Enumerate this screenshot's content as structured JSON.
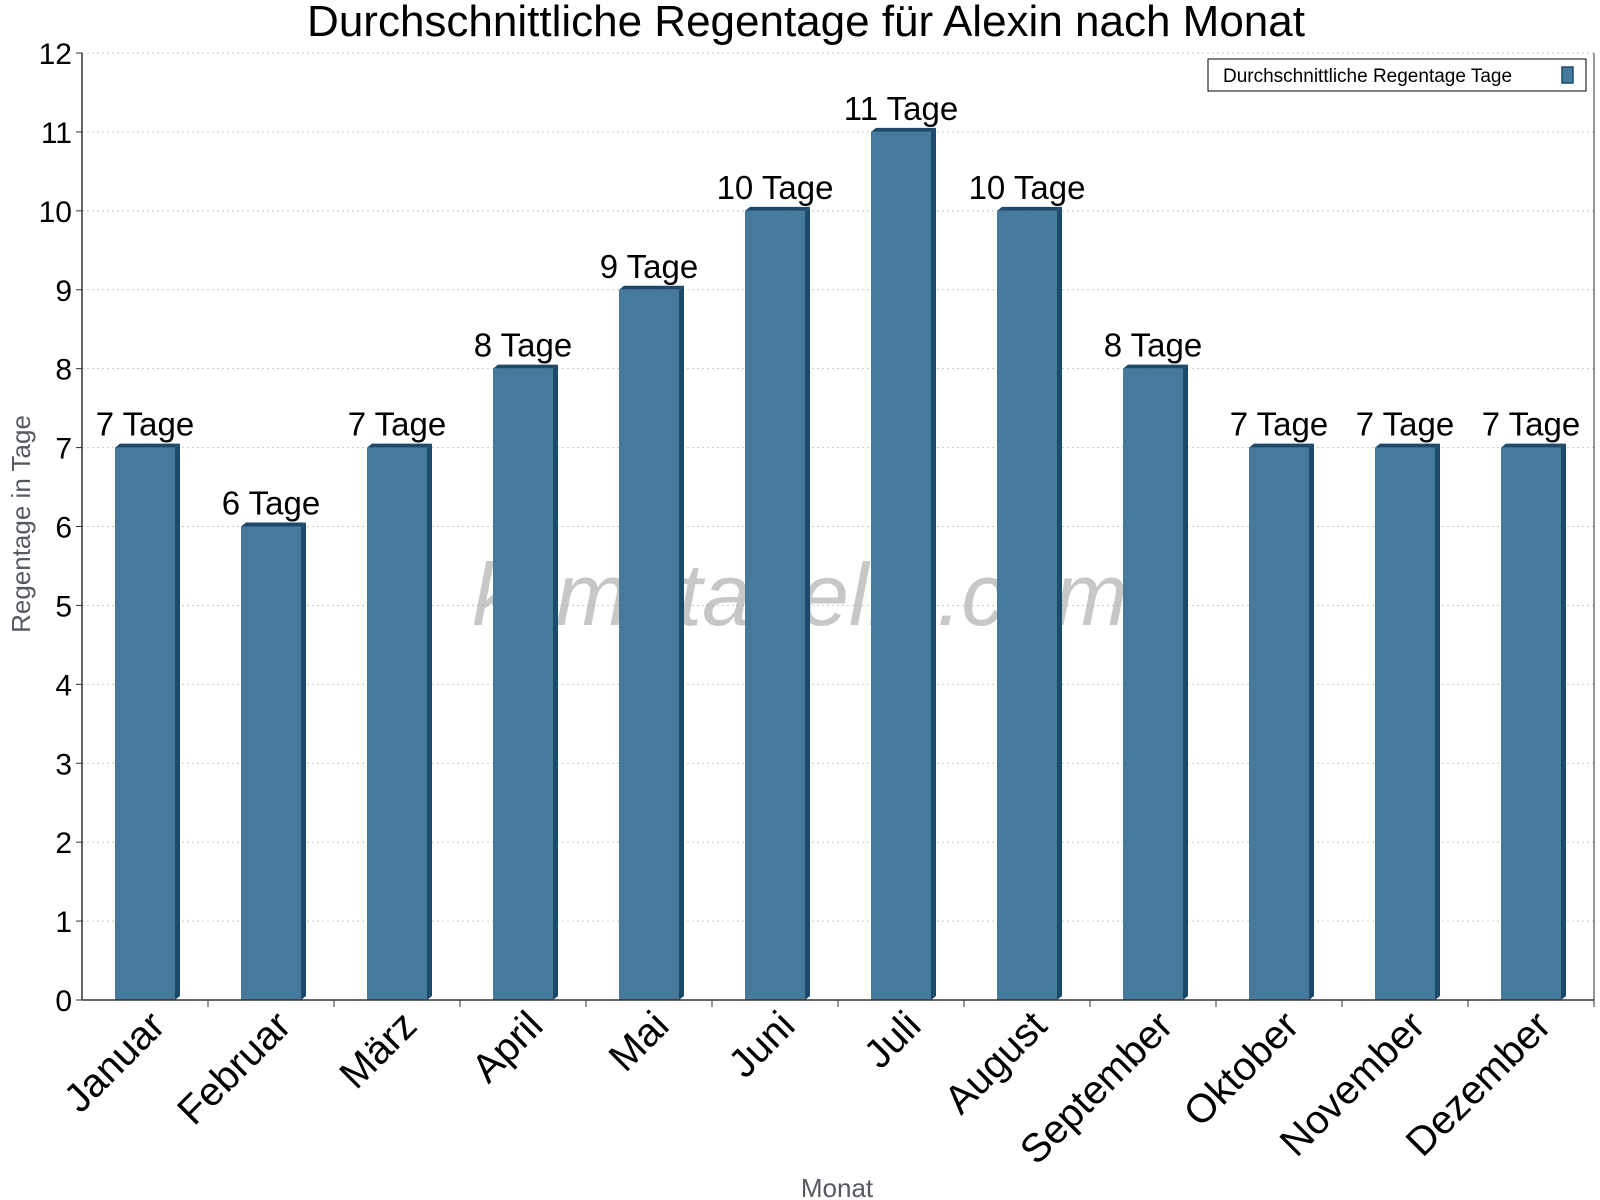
{
  "chart_data": {
    "type": "bar",
    "title": "Durchschnittliche Regentage für Alexin nach Monat",
    "xlabel": "Monat",
    "ylabel": "Regentage in Tage",
    "categories": [
      "Januar",
      "Februar",
      "März",
      "April",
      "Mai",
      "Juni",
      "Juli",
      "August",
      "September",
      "Oktober",
      "November",
      "Dezember"
    ],
    "series": [
      {
        "name": "Durchschnittliche Regentage Tage",
        "values": [
          7,
          6,
          7,
          8,
          9,
          10,
          11,
          10,
          8,
          7,
          7,
          7
        ],
        "data_labels": [
          "7 Tage",
          "6 Tage",
          "7 Tage",
          "8 Tage",
          "9 Tage",
          "10 Tage",
          "11 Tage",
          "10 Tage",
          "8 Tage",
          "7 Tage",
          "7 Tage",
          "7 Tage"
        ]
      }
    ],
    "ylim": [
      0,
      12
    ],
    "yticks": [
      "0",
      "1",
      "2",
      "3",
      "4",
      "5",
      "6",
      "7",
      "8",
      "9",
      "10",
      "11",
      "12"
    ],
    "grid": true,
    "legend_position": "top-right",
    "colors": {
      "bar": "#467a9c",
      "bar_side": "#1d4a6a",
      "grid": "#c8c8c8",
      "axis": "#333333"
    },
    "watermark": "klimatabelle.com"
  }
}
